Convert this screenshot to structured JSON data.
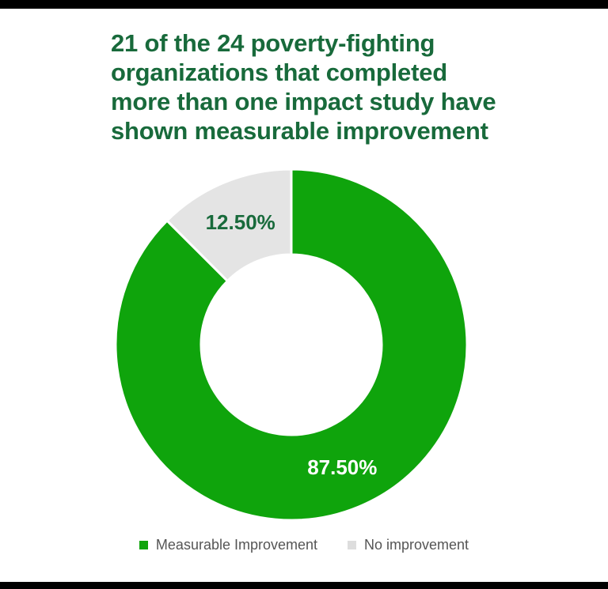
{
  "page": {
    "background": "#ffffff",
    "top_bar_color": "#000000",
    "bottom_bar_color": "#000000"
  },
  "title": {
    "text": "21 of the 24 poverty-fighting organizations that completed more than one impact study have shown measurable improvement",
    "lines": [
      "21 of the 24 poverty-fighting",
      "organizations that completed",
      "more than one impact study have",
      "shown measurable improvement"
    ],
    "color": "#186A3B"
  },
  "chart_data": {
    "type": "pie",
    "variant": "donut",
    "title": "21 of the 24 poverty-fighting organizations that completed more than one impact study have shown measurable improvement",
    "start_angle_deg": 0,
    "direction": "clockwise",
    "separator_color": "#FFFFFF",
    "legend_position": "bottom",
    "slices": [
      {
        "label": "Measurable Improvement",
        "value": 87.5,
        "display": "87.50%",
        "color": "#0FA40C",
        "label_color": "#FFFFFF"
      },
      {
        "label": "No improvement",
        "value": 12.5,
        "display": "12.50%",
        "color": "#E4E4E4",
        "label_color": "#186A3B"
      }
    ]
  },
  "legend": {
    "text_color": "#555555",
    "items": [
      {
        "label": "Measurable Improvement",
        "color": "#0FA40C"
      },
      {
        "label": "No improvement",
        "color": "#DDDDDD"
      }
    ]
  }
}
